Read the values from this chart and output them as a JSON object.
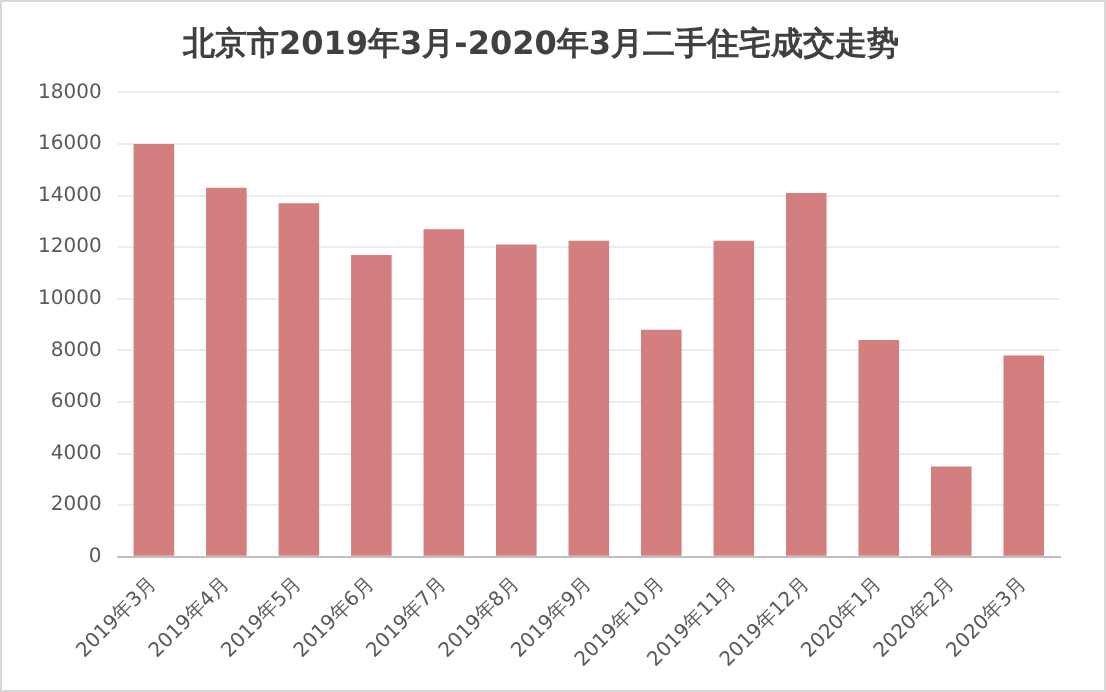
{
  "chart_data": {
    "type": "bar",
    "title": "北京市2019年3月-2020年3月二手住宅成交走势",
    "categories": [
      "2019年3月",
      "2019年4月",
      "2019年5月",
      "2019年6月",
      "2019年7月",
      "2019年8月",
      "2019年9月",
      "2019年10月",
      "2019年11月",
      "2019年12月",
      "2020年1月",
      "2020年2月",
      "2020年3月"
    ],
    "values": [
      16000,
      14300,
      13700,
      11700,
      12700,
      12100,
      12250,
      8800,
      12250,
      14100,
      8400,
      3500,
      7800
    ],
    "color": "#d47f7f",
    "ylim": [
      0,
      18000
    ],
    "yticks": [
      0,
      2000,
      4000,
      6000,
      8000,
      10000,
      12000,
      14000,
      16000,
      18000
    ],
    "grid": "y",
    "legend": false
  }
}
